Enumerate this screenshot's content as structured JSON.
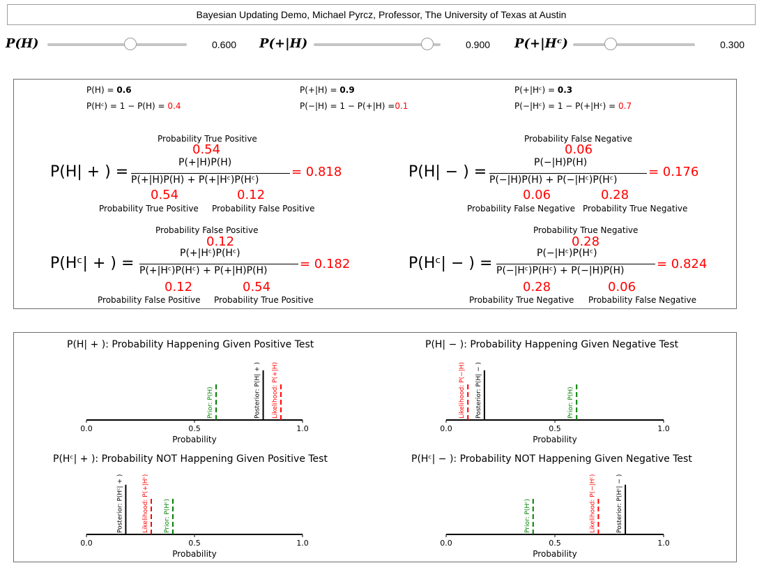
{
  "title": "Bayesian Updating Demo, Michael Pyrcz, Professor, The University of Texas at Austin",
  "sliders": [
    {
      "label": "P(H)",
      "value": 0.6,
      "value_text": "0.600"
    },
    {
      "label": "P(+|H)",
      "value": 0.9,
      "value_text": "0.900"
    },
    {
      "label": "P(+|Hᶜ)",
      "value": 0.3,
      "value_text": "0.300"
    }
  ],
  "summary": {
    "ph_label": "P(H) = ",
    "ph_value": "0.6",
    "phc_label": "P(Hᶜ) = 1 − P(H) = ",
    "phc_value": "0.4",
    "pposh_label": "P(+|H) = ",
    "pposh_value": "0.9",
    "pnegh_label": "P(−|H) = 1 − P(+|H) =",
    "pnegh_value": "0.1",
    "pposhc_label": "P(+|Hᶜ) = ",
    "pposhc_value": "0.3",
    "pneghc_label": "P(−|Hᶜ) = 1 − P(+|Hᶜ) = ",
    "pneghc_value": "0.7"
  },
  "eq_h_pos": {
    "lhs": "P(H| + ) =",
    "num_caption": "Probability True Positive",
    "num_value": "0.54",
    "numerator": "P(+|H)P(H)",
    "denominator": "P(+|H)P(H) + P(+|Hᶜ)P(Hᶜ)",
    "result": "= 0.818",
    "d1_value": "0.54",
    "d2_value": "0.12",
    "d1_caption": "Probability True Positive",
    "d2_caption": "Probability False Positive"
  },
  "eq_h_neg": {
    "lhs": "P(H| − ) =",
    "num_caption": "Probability False Negative",
    "num_value": "0.06",
    "numerator": "P(−|H)P(H)",
    "denominator": "P(−|H)P(H) + P(−|Hᶜ)P(Hᶜ)",
    "result": "= 0.176",
    "d1_value": "0.06",
    "d2_value": "0.28",
    "d1_caption": "Probability False Negative",
    "d2_caption": "Probability True Negative"
  },
  "eq_hc_pos": {
    "lhs": "P(Hᶜ| + ) =",
    "num_caption": "Probability False Positive",
    "num_value": "0.12",
    "numerator": "P(+|Hᶜ)P(Hᶜ)",
    "denominator": "P(+|Hᶜ)P(Hᶜ) + P(+|H)P(H)",
    "result": "= 0.182",
    "d1_value": "0.12",
    "d2_value": "0.54",
    "d1_caption": "Probability False Positive",
    "d2_caption": "Probability True Positive"
  },
  "eq_hc_neg": {
    "lhs": "P(Hᶜ| − ) =",
    "num_caption": "Probability True Negative",
    "num_value": "0.28",
    "numerator": "P(−|Hᶜ)P(Hᶜ)",
    "denominator": "P(−|Hᶜ)P(Hᶜ) + P(−|H)P(H)",
    "result": "= 0.824",
    "d1_value": "0.28",
    "d2_value": "0.06",
    "d1_caption": "Probability True Negative",
    "d2_caption": "Probability False Negative"
  },
  "colors": {
    "prior": "#008000",
    "likelihood": "#ff0000",
    "posterior": "#000000"
  },
  "chart_data": [
    {
      "type": "line",
      "title": "P(H| + ): Probability Happening Given Positive Test",
      "xlabel": "Probability",
      "xlim": [
        0,
        1
      ],
      "ticks": [
        "0.0",
        "0.5",
        "1.0"
      ],
      "markers": [
        {
          "name": "Prior: P(H)",
          "x": 0.6,
          "height": 0.55,
          "style": "dashed",
          "color": "#008000"
        },
        {
          "name": "Posterior: P(H| + )",
          "x": 0.818,
          "height": 0.75,
          "style": "solid",
          "color": "#000000"
        },
        {
          "name": "Likelihood: P(+|H)",
          "x": 0.9,
          "height": 0.55,
          "style": "dashed",
          "color": "#ff0000"
        }
      ]
    },
    {
      "type": "line",
      "title": "P(H| − ): Probability Happening Given Negative Test",
      "xlabel": "Probability",
      "xlim": [
        0,
        1
      ],
      "ticks": [
        "0.0",
        "0.5",
        "1.0"
      ],
      "markers": [
        {
          "name": "Likelihood: P(−|H)",
          "x": 0.1,
          "height": 0.55,
          "style": "dashed",
          "color": "#ff0000"
        },
        {
          "name": "Posterior: P(H| − )",
          "x": 0.176,
          "height": 0.75,
          "style": "solid",
          "color": "#000000"
        },
        {
          "name": "Prior: P(H)",
          "x": 0.6,
          "height": 0.55,
          "style": "dashed",
          "color": "#008000"
        }
      ]
    },
    {
      "type": "line",
      "title": "P(Hᶜ| + ): Probability NOT Happening Given Positive Test",
      "xlabel": "Probability",
      "xlim": [
        0,
        1
      ],
      "ticks": [
        "0.0",
        "0.5",
        "1.0"
      ],
      "markers": [
        {
          "name": "Posterior: P(Hᶜ| + )",
          "x": 0.182,
          "height": 0.75,
          "style": "solid",
          "color": "#000000"
        },
        {
          "name": "Likelihood: P(+|Hᶜ)",
          "x": 0.3,
          "height": 0.55,
          "style": "dashed",
          "color": "#ff0000"
        },
        {
          "name": "Prior: P(Hᶜ)",
          "x": 0.4,
          "height": 0.55,
          "style": "dashed",
          "color": "#008000"
        }
      ]
    },
    {
      "type": "line",
      "title": "P(Hᶜ| − ): Probability NOT Happening Given Negative Test",
      "xlabel": "Probability",
      "xlim": [
        0,
        1
      ],
      "ticks": [
        "0.0",
        "0.5",
        "1.0"
      ],
      "markers": [
        {
          "name": "Prior: P(Hᶜ)",
          "x": 0.4,
          "height": 0.55,
          "style": "dashed",
          "color": "#008000"
        },
        {
          "name": "Likelihood: P(−|Hᶜ)",
          "x": 0.7,
          "height": 0.55,
          "style": "dashed",
          "color": "#ff0000"
        },
        {
          "name": "Posterior: P(Hᶜ| − )",
          "x": 0.824,
          "height": 0.75,
          "style": "solid",
          "color": "#000000"
        }
      ]
    }
  ]
}
